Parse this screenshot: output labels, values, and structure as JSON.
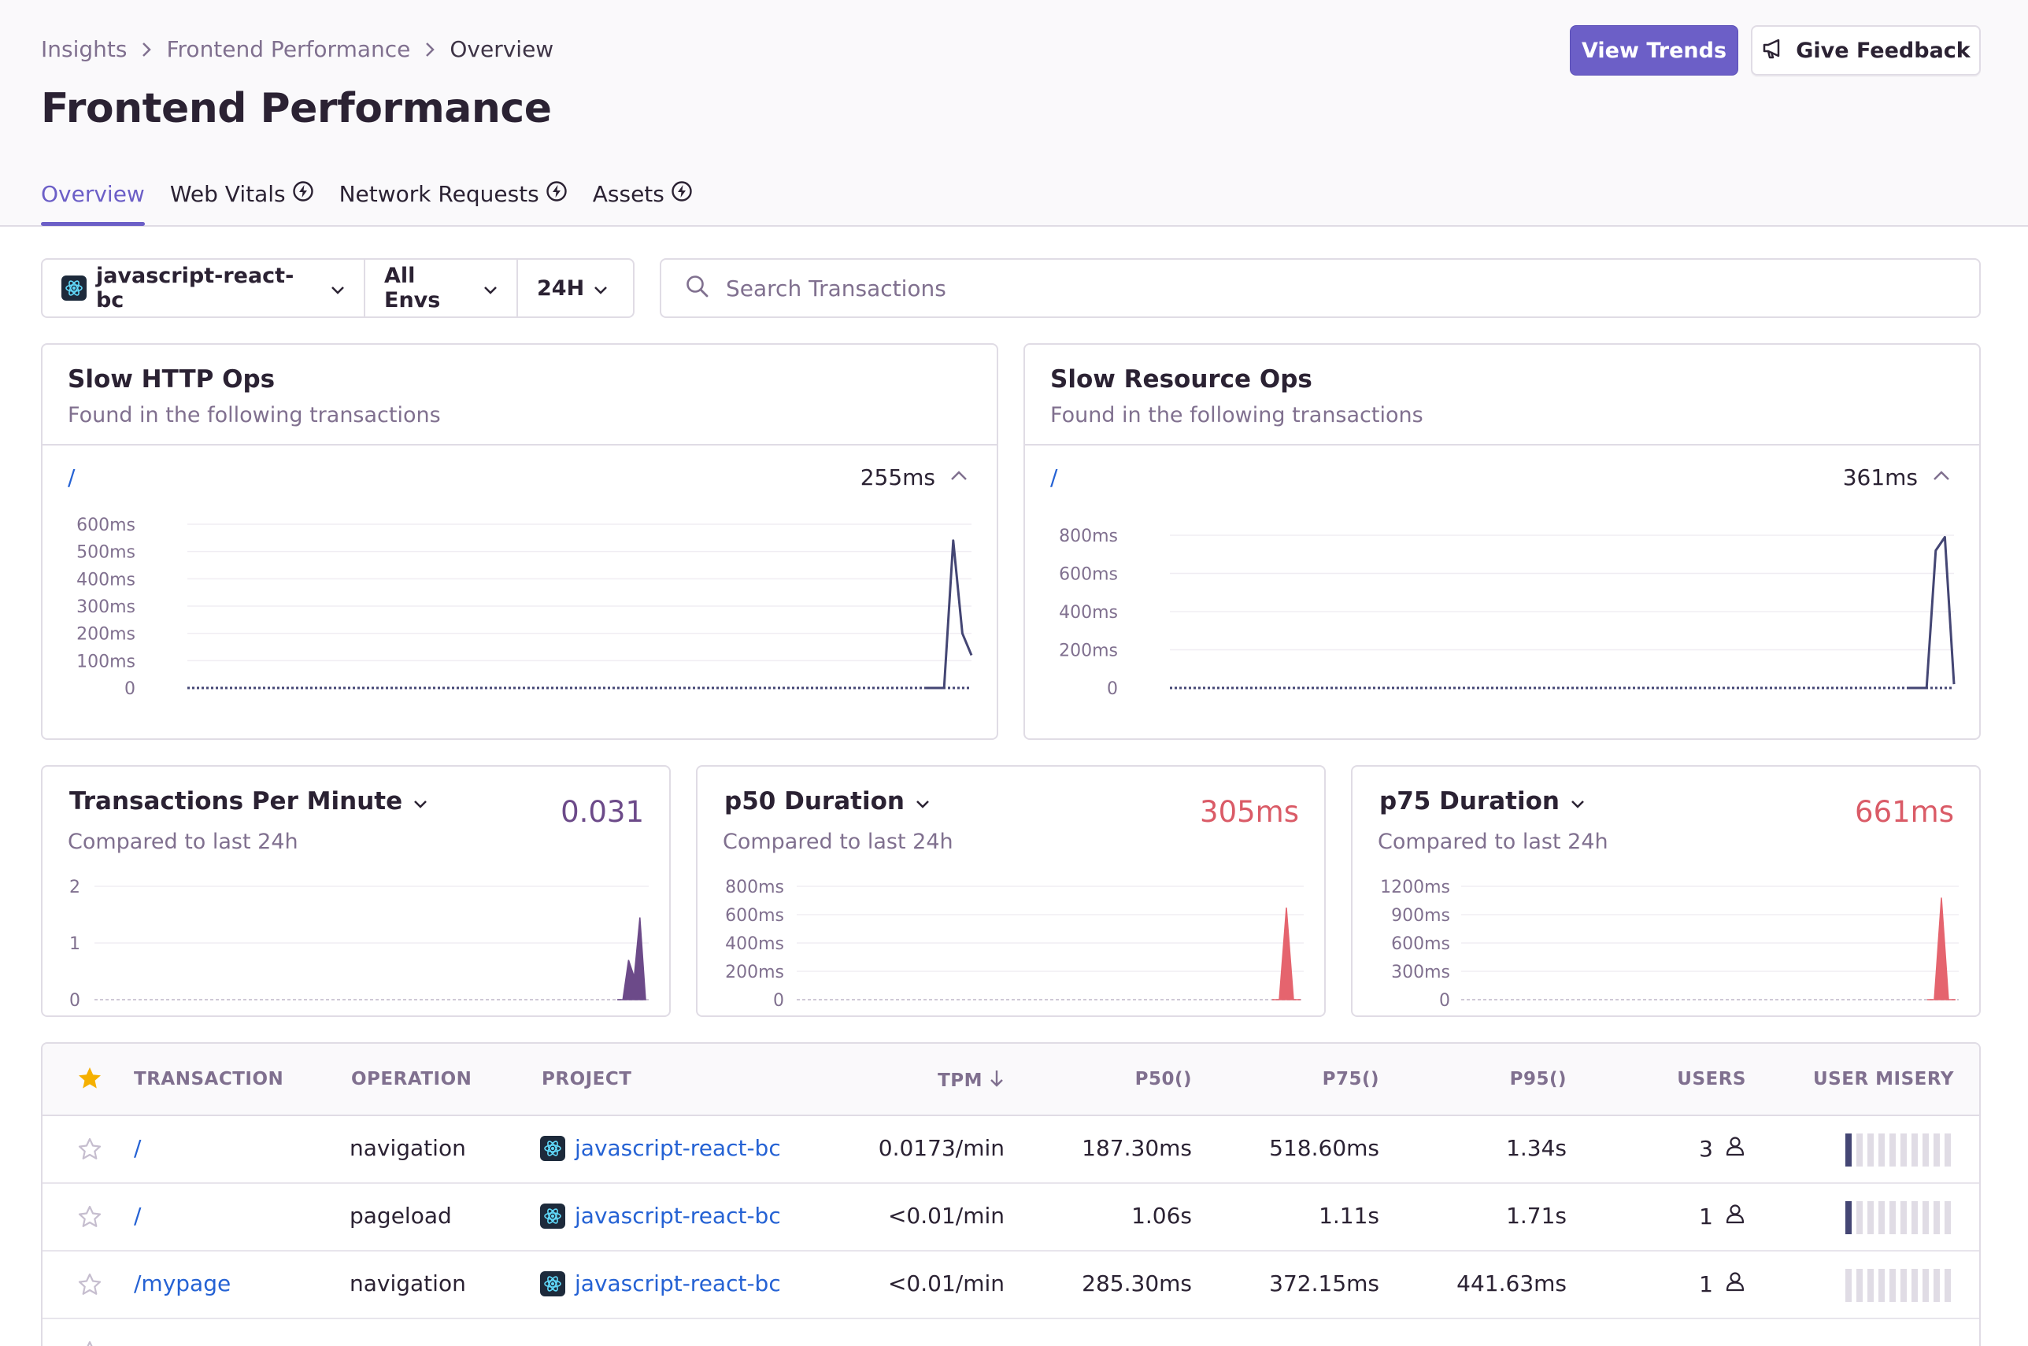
{
  "breadcrumb": [
    "Insights",
    "Frontend Performance",
    "Overview"
  ],
  "page_title": "Frontend Performance",
  "header_buttons": {
    "view_trends": "View Trends",
    "give_feedback": "Give Feedback"
  },
  "tabs": [
    {
      "label": "Overview",
      "active": true,
      "icon": ""
    },
    {
      "label": "Web Vitals",
      "active": false,
      "icon": "lightning-icon"
    },
    {
      "label": "Network Requests",
      "active": false,
      "icon": "lightning-icon"
    },
    {
      "label": "Assets",
      "active": false,
      "icon": "lightning-icon"
    }
  ],
  "filters": {
    "project": "javascript-react-bc",
    "environment": "All Envs",
    "period": "24H"
  },
  "search": {
    "placeholder": "Search Transactions"
  },
  "colors": {
    "accent": "#6c5fc7",
    "link": "#2562d4",
    "chart_line": "#444674",
    "tpm_fill": "#6c4a89",
    "duration_fill": "#e5646e",
    "duration_value": "#da5b67",
    "tpm_value": "#6c4a89"
  },
  "slow_http": {
    "title": "Slow HTTP Ops",
    "subtitle": "Found in the following transactions",
    "row_link": "/",
    "row_value": "255ms",
    "y_ticks": [
      "600ms",
      "500ms",
      "400ms",
      "300ms",
      "200ms",
      "100ms",
      "0"
    ]
  },
  "slow_resource": {
    "title": "Slow Resource Ops",
    "subtitle": "Found in the following transactions",
    "row_link": "/",
    "row_value": "361ms",
    "y_ticks": [
      "800ms",
      "600ms",
      "400ms",
      "200ms",
      "0"
    ]
  },
  "metrics": [
    {
      "title": "Transactions Per Minute",
      "subtitle": "Compared to last 24h",
      "value": "0.031",
      "y_ticks": [
        "2",
        "1",
        "0"
      ]
    },
    {
      "title": "p50 Duration",
      "subtitle": "Compared to last 24h",
      "value": "305ms",
      "y_ticks": [
        "800ms",
        "600ms",
        "400ms",
        "200ms",
        "0"
      ]
    },
    {
      "title": "p75 Duration",
      "subtitle": "Compared to last 24h",
      "value": "661ms",
      "y_ticks": [
        "1200ms",
        "900ms",
        "600ms",
        "300ms",
        "0"
      ]
    }
  ],
  "chart_data": [
    {
      "type": "line",
      "title": "Slow HTTP Ops",
      "ylim": [
        0,
        600
      ],
      "x": [
        0,
        1,
        2,
        3,
        4,
        5
      ],
      "series": [
        {
          "values": [
            0,
            0,
            0,
            540,
            200,
            120
          ]
        }
      ]
    },
    {
      "type": "line",
      "title": "Slow Resource Ops",
      "ylim": [
        0,
        800
      ],
      "x": [
        0,
        1,
        2,
        3,
        4,
        5
      ],
      "series": [
        {
          "values": [
            0,
            0,
            0,
            720,
            790,
            20
          ]
        }
      ]
    },
    {
      "type": "area",
      "title": "Transactions Per Minute",
      "ylim": [
        0,
        2
      ],
      "x": [
        0,
        1,
        2,
        3,
        4,
        5
      ],
      "series": [
        {
          "values": [
            0,
            0,
            0.7,
            0.4,
            1.45,
            0
          ]
        }
      ]
    },
    {
      "type": "area",
      "title": "p50 Duration",
      "ylim": [
        0,
        800
      ],
      "x": [
        0,
        1,
        2,
        3,
        4
      ],
      "series": [
        {
          "values": [
            0,
            0,
            650,
            0,
            0
          ]
        }
      ]
    },
    {
      "type": "area",
      "title": "p75 Duration",
      "ylim": [
        0,
        1200
      ],
      "x": [
        0,
        1,
        2,
        3,
        4
      ],
      "series": [
        {
          "values": [
            0,
            0,
            1080,
            0,
            0
          ]
        }
      ]
    }
  ],
  "table": {
    "headers": {
      "transaction": "TRANSACTION",
      "operation": "OPERATION",
      "project": "PROJECT",
      "tpm": "TPM",
      "p50": "P50()",
      "p75": "P75()",
      "p95": "P95()",
      "users": "USERS",
      "user_misery": "USER MISERY"
    },
    "rows": [
      {
        "transaction": "/",
        "operation": "navigation",
        "project": "javascript-react-bc",
        "tpm": "0.0173/min",
        "p50": "187.30ms",
        "p75": "518.60ms",
        "p95": "1.34s",
        "users": "3",
        "misery": 1
      },
      {
        "transaction": "/",
        "operation": "pageload",
        "project": "javascript-react-bc",
        "tpm": "<0.01/min",
        "p50": "1.06s",
        "p75": "1.11s",
        "p95": "1.71s",
        "users": "1",
        "misery": 1
      },
      {
        "transaction": "/mypage",
        "operation": "navigation",
        "project": "javascript-react-bc",
        "tpm": "<0.01/min",
        "p50": "285.30ms",
        "p75": "372.15ms",
        "p95": "441.63ms",
        "users": "1",
        "misery": 0
      }
    ]
  }
}
